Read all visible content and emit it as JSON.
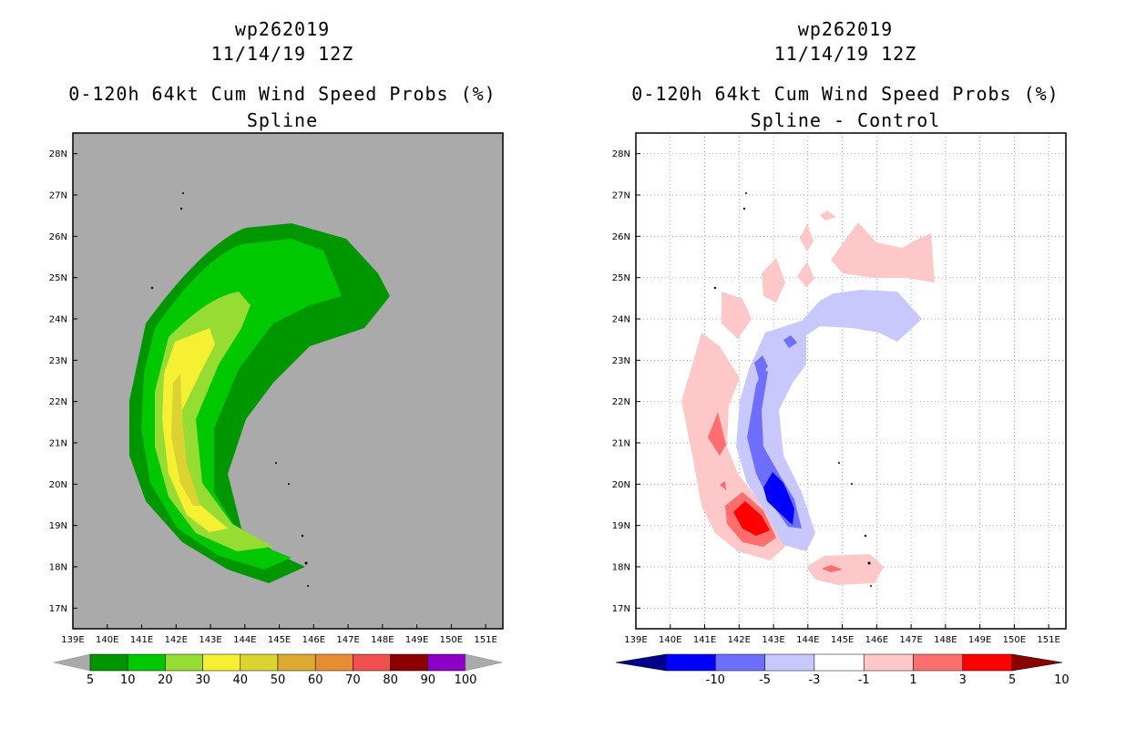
{
  "left": {
    "title_lines": [
      "wp262019",
      "11/14/19 12Z",
      "0-120h 64kt Cum Wind Speed Probs (%)",
      "Spline"
    ],
    "colorbar_labels": [
      "5",
      "10",
      "20",
      "30",
      "40",
      "50",
      "60",
      "70",
      "80",
      "90",
      "100"
    ],
    "colors": [
      "#009600",
      "#00c800",
      "#96dc32",
      "#f5f032",
      "#dcd232",
      "#dcaa32",
      "#e68c32",
      "#f05050",
      "#8c0000",
      "#8c00c8"
    ],
    "background": "#aaaaaa"
  },
  "right": {
    "title_lines": [
      "wp262019",
      "11/14/19 12Z",
      "0-120h 64kt Cum Wind Speed Probs (%)",
      "Spline - Control"
    ],
    "colorbar_labels": [
      "-10",
      "-5",
      "-3",
      "-1",
      "1",
      "3",
      "5",
      "10"
    ],
    "colors": [
      "#00008c",
      "#0000ff",
      "#6e6eff",
      "#c8c8ff",
      "#ffffff",
      "#ffc8c8",
      "#ff6e6e",
      "#ff0000",
      "#8c0000"
    ],
    "background": "#ffffff"
  },
  "chart_data": [
    {
      "type": "heatmap",
      "title": "0-120h 64kt Cum Wind Speed Probs (%) - Spline",
      "x_ticks": [
        "139E",
        "140E",
        "141E",
        "142E",
        "143E",
        "144E",
        "145E",
        "146E",
        "147E",
        "148E",
        "149E",
        "150E",
        "151E"
      ],
      "y_ticks": [
        "17N",
        "18N",
        "19N",
        "20N",
        "21N",
        "22N",
        "23N",
        "24N",
        "25N",
        "26N",
        "27N",
        "28N"
      ],
      "xlim": [
        139,
        151.5
      ],
      "ylim": [
        16.5,
        28.5
      ],
      "levels": [
        5,
        10,
        20,
        30,
        40,
        50,
        60,
        70,
        80,
        90,
        100
      ],
      "max_probability_pct": 40,
      "max_location": "approx. 142E, 21N"
    },
    {
      "type": "heatmap",
      "title": "0-120h 64kt Cum Wind Speed Probs (%) - Spline - Control",
      "x_ticks": [
        "139E",
        "140E",
        "141E",
        "142E",
        "143E",
        "144E",
        "145E",
        "146E",
        "147E",
        "148E",
        "149E",
        "150E",
        "151E"
      ],
      "y_ticks": [
        "17N",
        "18N",
        "19N",
        "20N",
        "21N",
        "22N",
        "23N",
        "24N",
        "25N",
        "26N",
        "27N",
        "28N"
      ],
      "xlim": [
        139,
        151.5
      ],
      "ylim": [
        16.5,
        28.5
      ],
      "levels": [
        -10,
        -5,
        -3,
        -1,
        1,
        3,
        5,
        10
      ],
      "max_positive_difference_pct": 10,
      "max_negative_difference_pct": -10
    }
  ]
}
